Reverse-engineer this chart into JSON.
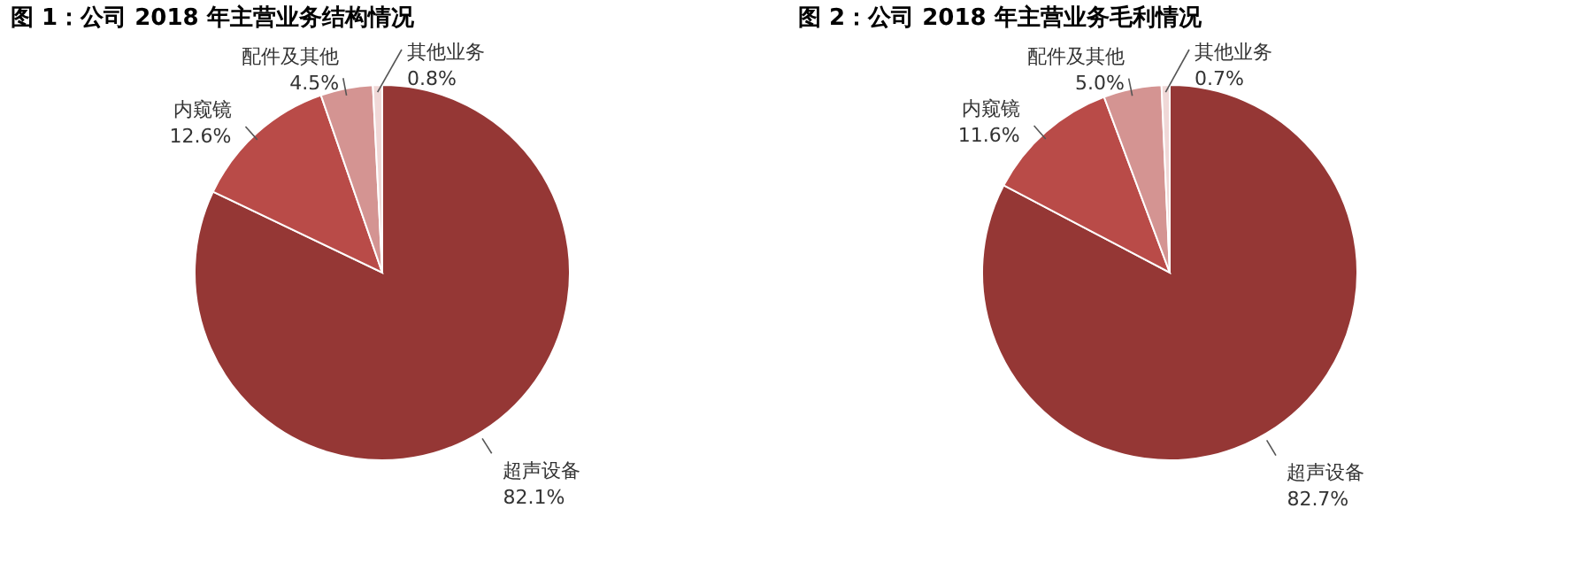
{
  "chart_data": [
    {
      "type": "pie",
      "title": "图 1：公司 2018 年主营业务结构情况",
      "categories": [
        "超声设备",
        "内窥镜",
        "配件及其他",
        "其他业务"
      ],
      "values": [
        82.1,
        12.6,
        4.5,
        0.8
      ],
      "value_labels": [
        "82.1%",
        "12.6%",
        "4.5%",
        "0.8%"
      ],
      "colors": [
        "#953735",
        "#b94b48",
        "#d49492",
        "#f0d8d7"
      ]
    },
    {
      "type": "pie",
      "title": "图 2：公司 2018 年主营业务毛利情况",
      "categories": [
        "超声设备",
        "内窥镜",
        "配件及其他",
        "其他业务"
      ],
      "values": [
        82.7,
        11.6,
        5.0,
        0.7
      ],
      "value_labels": [
        "82.7%",
        "11.6%",
        "5.0%",
        "0.7%"
      ],
      "colors": [
        "#953735",
        "#b94b48",
        "#d49492",
        "#f0d8d7"
      ]
    }
  ]
}
